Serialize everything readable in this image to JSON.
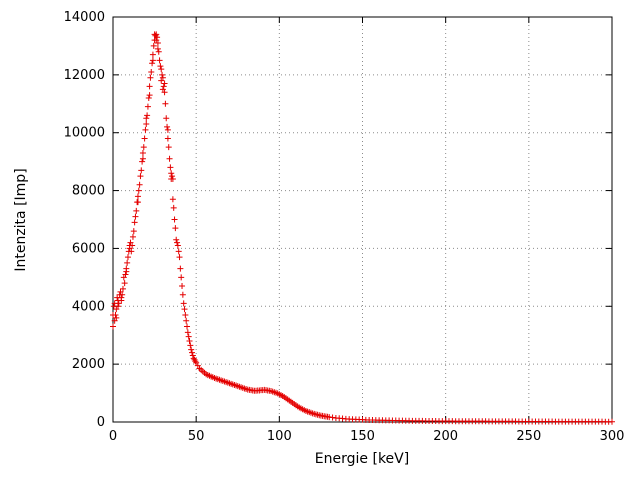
{
  "chart_data": {
    "type": "scatter",
    "title": "",
    "xlabel": "Energie [keV]",
    "ylabel": "Intenzita [Imp]",
    "xlim": [
      0,
      300
    ],
    "ylim": [
      0,
      14000
    ],
    "xticks": [
      0,
      50,
      100,
      150,
      200,
      250,
      300
    ],
    "yticks": [
      0,
      2000,
      4000,
      6000,
      8000,
      10000,
      12000,
      14000
    ],
    "grid": "dotted",
    "legend_position": "none",
    "marker": "plus",
    "marker_color": "#e40000",
    "points": [
      [
        0,
        3300
      ],
      [
        1,
        3500
      ],
      [
        2,
        3900
      ],
      [
        3,
        4200
      ],
      [
        4,
        4400
      ],
      [
        5,
        4300
      ],
      [
        6,
        4600
      ],
      [
        7,
        4800
      ],
      [
        8,
        5200
      ],
      [
        9,
        5700
      ],
      [
        10,
        6000
      ],
      [
        11,
        5900
      ],
      [
        12,
        6400
      ],
      [
        13,
        6900
      ],
      [
        14,
        7300
      ],
      [
        15,
        7800
      ],
      [
        16,
        8200
      ],
      [
        17,
        8700
      ],
      [
        18,
        9300
      ],
      [
        19,
        9800
      ],
      [
        20,
        10300
      ],
      [
        21,
        10900
      ],
      [
        22,
        11600
      ],
      [
        23,
        12100
      ],
      [
        24,
        12700
      ],
      [
        25,
        13200
      ],
      [
        26,
        13400
      ],
      [
        27,
        13100
      ],
      [
        28,
        12500
      ],
      [
        29,
        12200
      ],
      [
        30,
        11900
      ],
      [
        31,
        11400
      ],
      [
        32,
        10500
      ],
      [
        33,
        9800
      ],
      [
        34,
        9100
      ],
      [
        35,
        8400
      ],
      [
        36,
        7700
      ],
      [
        37,
        7000
      ],
      [
        38,
        6300
      ],
      [
        39,
        6100
      ],
      [
        40,
        5700
      ],
      [
        41,
        5000
      ],
      [
        42,
        4400
      ],
      [
        43,
        3900
      ],
      [
        44,
        3500
      ],
      [
        45,
        3100
      ],
      [
        46,
        2800
      ],
      [
        47,
        2500
      ],
      [
        48,
        2300
      ],
      [
        49,
        2150
      ],
      [
        50,
        2050
      ],
      [
        51,
        1950
      ],
      [
        52,
        1850
      ],
      [
        53,
        1800
      ],
      [
        54,
        1750
      ],
      [
        55,
        1700
      ],
      [
        56,
        1650
      ],
      [
        57,
        1620
      ],
      [
        58,
        1600
      ],
      [
        59,
        1570
      ],
      [
        60,
        1550
      ],
      [
        61,
        1520
      ],
      [
        62,
        1500
      ],
      [
        63,
        1480
      ],
      [
        64,
        1460
      ],
      [
        65,
        1440
      ],
      [
        66,
        1420
      ],
      [
        67,
        1400
      ],
      [
        68,
        1380
      ],
      [
        69,
        1360
      ],
      [
        70,
        1340
      ],
      [
        71,
        1320
      ],
      [
        72,
        1300
      ],
      [
        73,
        1280
      ],
      [
        74,
        1260
      ],
      [
        75,
        1240
      ],
      [
        76,
        1220
      ],
      [
        77,
        1200
      ],
      [
        78,
        1180
      ],
      [
        79,
        1160
      ],
      [
        80,
        1140
      ],
      [
        81,
        1120
      ],
      [
        82,
        1110
      ],
      [
        83,
        1100
      ],
      [
        84,
        1090
      ],
      [
        85,
        1080
      ],
      [
        86,
        1080
      ],
      [
        87,
        1090
      ],
      [
        88,
        1090
      ],
      [
        89,
        1100
      ],
      [
        90,
        1100
      ],
      [
        91,
        1110
      ],
      [
        92,
        1100
      ],
      [
        93,
        1090
      ],
      [
        94,
        1080
      ],
      [
        95,
        1070
      ],
      [
        96,
        1050
      ],
      [
        97,
        1030
      ],
      [
        98,
        1010
      ],
      [
        99,
        990
      ],
      [
        100,
        960
      ],
      [
        101,
        930
      ],
      [
        102,
        900
      ],
      [
        103,
        860
      ],
      [
        104,
        820
      ],
      [
        105,
        780
      ],
      [
        106,
        740
      ],
      [
        107,
        700
      ],
      [
        108,
        660
      ],
      [
        109,
        620
      ],
      [
        110,
        580
      ],
      [
        111,
        540
      ],
      [
        112,
        500
      ],
      [
        113,
        470
      ],
      [
        114,
        440
      ],
      [
        115,
        410
      ],
      [
        116,
        380
      ],
      [
        117,
        360
      ],
      [
        118,
        340
      ],
      [
        119,
        320
      ],
      [
        120,
        300
      ],
      [
        121,
        280
      ],
      [
        122,
        265
      ],
      [
        123,
        250
      ],
      [
        124,
        235
      ],
      [
        125,
        220
      ],
      [
        126,
        210
      ],
      [
        127,
        200
      ],
      [
        128,
        190
      ],
      [
        129,
        180
      ],
      [
        130,
        170
      ],
      [
        132,
        155
      ],
      [
        134,
        140
      ],
      [
        136,
        130
      ],
      [
        138,
        120
      ],
      [
        140,
        110
      ],
      [
        142,
        100
      ],
      [
        144,
        95
      ],
      [
        146,
        90
      ],
      [
        148,
        85
      ],
      [
        150,
        80
      ],
      [
        152,
        75
      ],
      [
        154,
        70
      ],
      [
        156,
        68
      ],
      [
        158,
        65
      ],
      [
        160,
        62
      ],
      [
        162,
        60
      ],
      [
        164,
        57
      ],
      [
        166,
        55
      ],
      [
        168,
        52
      ],
      [
        170,
        50
      ],
      [
        172,
        48
      ],
      [
        174,
        46
      ],
      [
        176,
        44
      ],
      [
        178,
        42
      ],
      [
        180,
        40
      ],
      [
        182,
        39
      ],
      [
        184,
        38
      ],
      [
        186,
        37
      ],
      [
        188,
        36
      ],
      [
        190,
        35
      ],
      [
        192,
        34
      ],
      [
        194,
        33
      ],
      [
        196,
        32
      ],
      [
        198,
        31
      ],
      [
        200,
        30
      ],
      [
        202,
        29
      ],
      [
        204,
        29
      ],
      [
        206,
        28
      ],
      [
        208,
        28
      ],
      [
        210,
        27
      ],
      [
        212,
        27
      ],
      [
        214,
        26
      ],
      [
        216,
        26
      ],
      [
        218,
        25
      ],
      [
        220,
        25
      ],
      [
        222,
        24
      ],
      [
        224,
        24
      ],
      [
        226,
        23
      ],
      [
        228,
        23
      ],
      [
        230,
        22
      ],
      [
        232,
        22
      ],
      [
        234,
        21
      ],
      [
        236,
        21
      ],
      [
        238,
        20
      ],
      [
        240,
        20
      ],
      [
        242,
        20
      ],
      [
        244,
        19
      ],
      [
        246,
        19
      ],
      [
        248,
        18
      ],
      [
        250,
        18
      ],
      [
        252,
        18
      ],
      [
        254,
        17
      ],
      [
        256,
        17
      ],
      [
        258,
        17
      ],
      [
        260,
        16
      ],
      [
        262,
        16
      ],
      [
        264,
        16
      ],
      [
        266,
        15
      ],
      [
        268,
        15
      ],
      [
        270,
        15
      ],
      [
        272,
        14
      ],
      [
        274,
        14
      ],
      [
        276,
        14
      ],
      [
        278,
        13
      ],
      [
        280,
        13
      ],
      [
        282,
        13
      ],
      [
        284,
        12
      ],
      [
        286,
        12
      ],
      [
        288,
        12
      ],
      [
        290,
        11
      ],
      [
        292,
        11
      ],
      [
        294,
        11
      ],
      [
        296,
        10
      ],
      [
        298,
        10
      ],
      [
        300,
        10
      ],
      [
        0.5,
        4000
      ],
      [
        1.5,
        3700
      ],
      [
        2.5,
        4300
      ],
      [
        3.5,
        4100
      ],
      [
        4.5,
        4500
      ],
      [
        5.5,
        4400
      ],
      [
        6.5,
        5000
      ],
      [
        7.5,
        5100
      ],
      [
        8.5,
        5500
      ],
      [
        9.5,
        5900
      ],
      [
        10.5,
        6200
      ],
      [
        11.5,
        6100
      ],
      [
        12.5,
        6600
      ],
      [
        13.5,
        7100
      ],
      [
        14.5,
        7600
      ],
      [
        15.5,
        8000
      ],
      [
        16.5,
        8500
      ],
      [
        17.5,
        9000
      ],
      [
        18.5,
        9500
      ],
      [
        19.5,
        10100
      ],
      [
        20.5,
        10600
      ],
      [
        21.5,
        11200
      ],
      [
        22.5,
        11900
      ],
      [
        23.5,
        12400
      ],
      [
        24.5,
        13000
      ],
      [
        25.5,
        13350
      ],
      [
        26.5,
        13300
      ],
      [
        27.5,
        12800
      ],
      [
        28.5,
        12300
      ],
      [
        29.5,
        12000
      ],
      [
        30.5,
        11600
      ],
      [
        31.5,
        11000
      ],
      [
        32.5,
        10200
      ],
      [
        33.5,
        9500
      ],
      [
        34.5,
        8800
      ],
      [
        35.5,
        8500
      ],
      [
        36.5,
        7400
      ],
      [
        37.5,
        6700
      ],
      [
        38.5,
        6200
      ],
      [
        39.5,
        5900
      ],
      [
        40.5,
        5300
      ],
      [
        41.5,
        4700
      ],
      [
        42.5,
        4100
      ],
      [
        43.5,
        3700
      ],
      [
        44.5,
        3300
      ],
      [
        45.5,
        2950
      ],
      [
        46.5,
        2650
      ],
      [
        47.5,
        2400
      ],
      [
        48.5,
        2200
      ],
      [
        49.5,
        2100
      ],
      [
        0,
        3700
      ],
      [
        1,
        4100
      ],
      [
        2,
        3600
      ],
      [
        3,
        4000
      ],
      [
        5,
        4200
      ],
      [
        8,
        5300
      ],
      [
        10,
        6100
      ],
      [
        15,
        7600
      ],
      [
        18,
        9100
      ],
      [
        20,
        10500
      ],
      [
        22,
        11300
      ],
      [
        24,
        12500
      ],
      [
        25,
        13400
      ],
      [
        26,
        13200
      ],
      [
        27,
        12900
      ],
      [
        29,
        11800
      ],
      [
        30,
        11500
      ],
      [
        31,
        11700
      ],
      [
        33,
        10100
      ],
      [
        35,
        8600
      ],
      [
        36,
        8400
      ]
    ]
  }
}
